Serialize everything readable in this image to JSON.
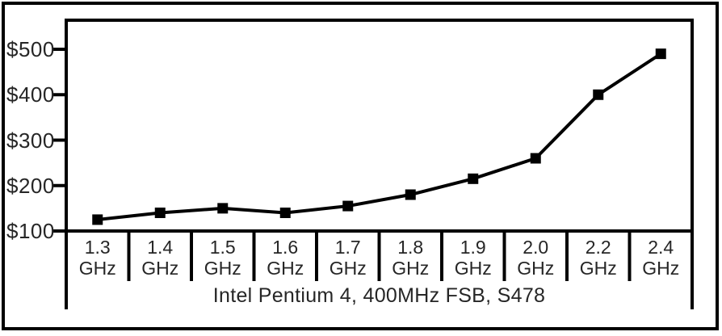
{
  "chart_data": {
    "type": "line",
    "title": "",
    "categories": [
      "1.3",
      "1.4",
      "1.5",
      "1.6",
      "1.7",
      "1.8",
      "1.9",
      "2.0",
      "2.2",
      "2.4"
    ],
    "category_unit": "GHz",
    "values": [
      125,
      140,
      150,
      140,
      155,
      180,
      215,
      260,
      400,
      490
    ],
    "xlabel": "Intel Pentium 4, 400MHz FSB, S478",
    "ylabel": "",
    "y_ticks": [
      {
        "label": "$500",
        "value": 500
      },
      {
        "label": "$400",
        "value": 400
      },
      {
        "label": "$300",
        "value": 300
      },
      {
        "label": "$200",
        "value": 200
      },
      {
        "label": "$100",
        "value": 100
      }
    ],
    "ylim": [
      100,
      560
    ],
    "grid": false,
    "legend": false,
    "marker": "square",
    "line_color": "#000000",
    "frame_color": "#000000",
    "text_color": "#262626",
    "background_color": "#ffffff"
  }
}
